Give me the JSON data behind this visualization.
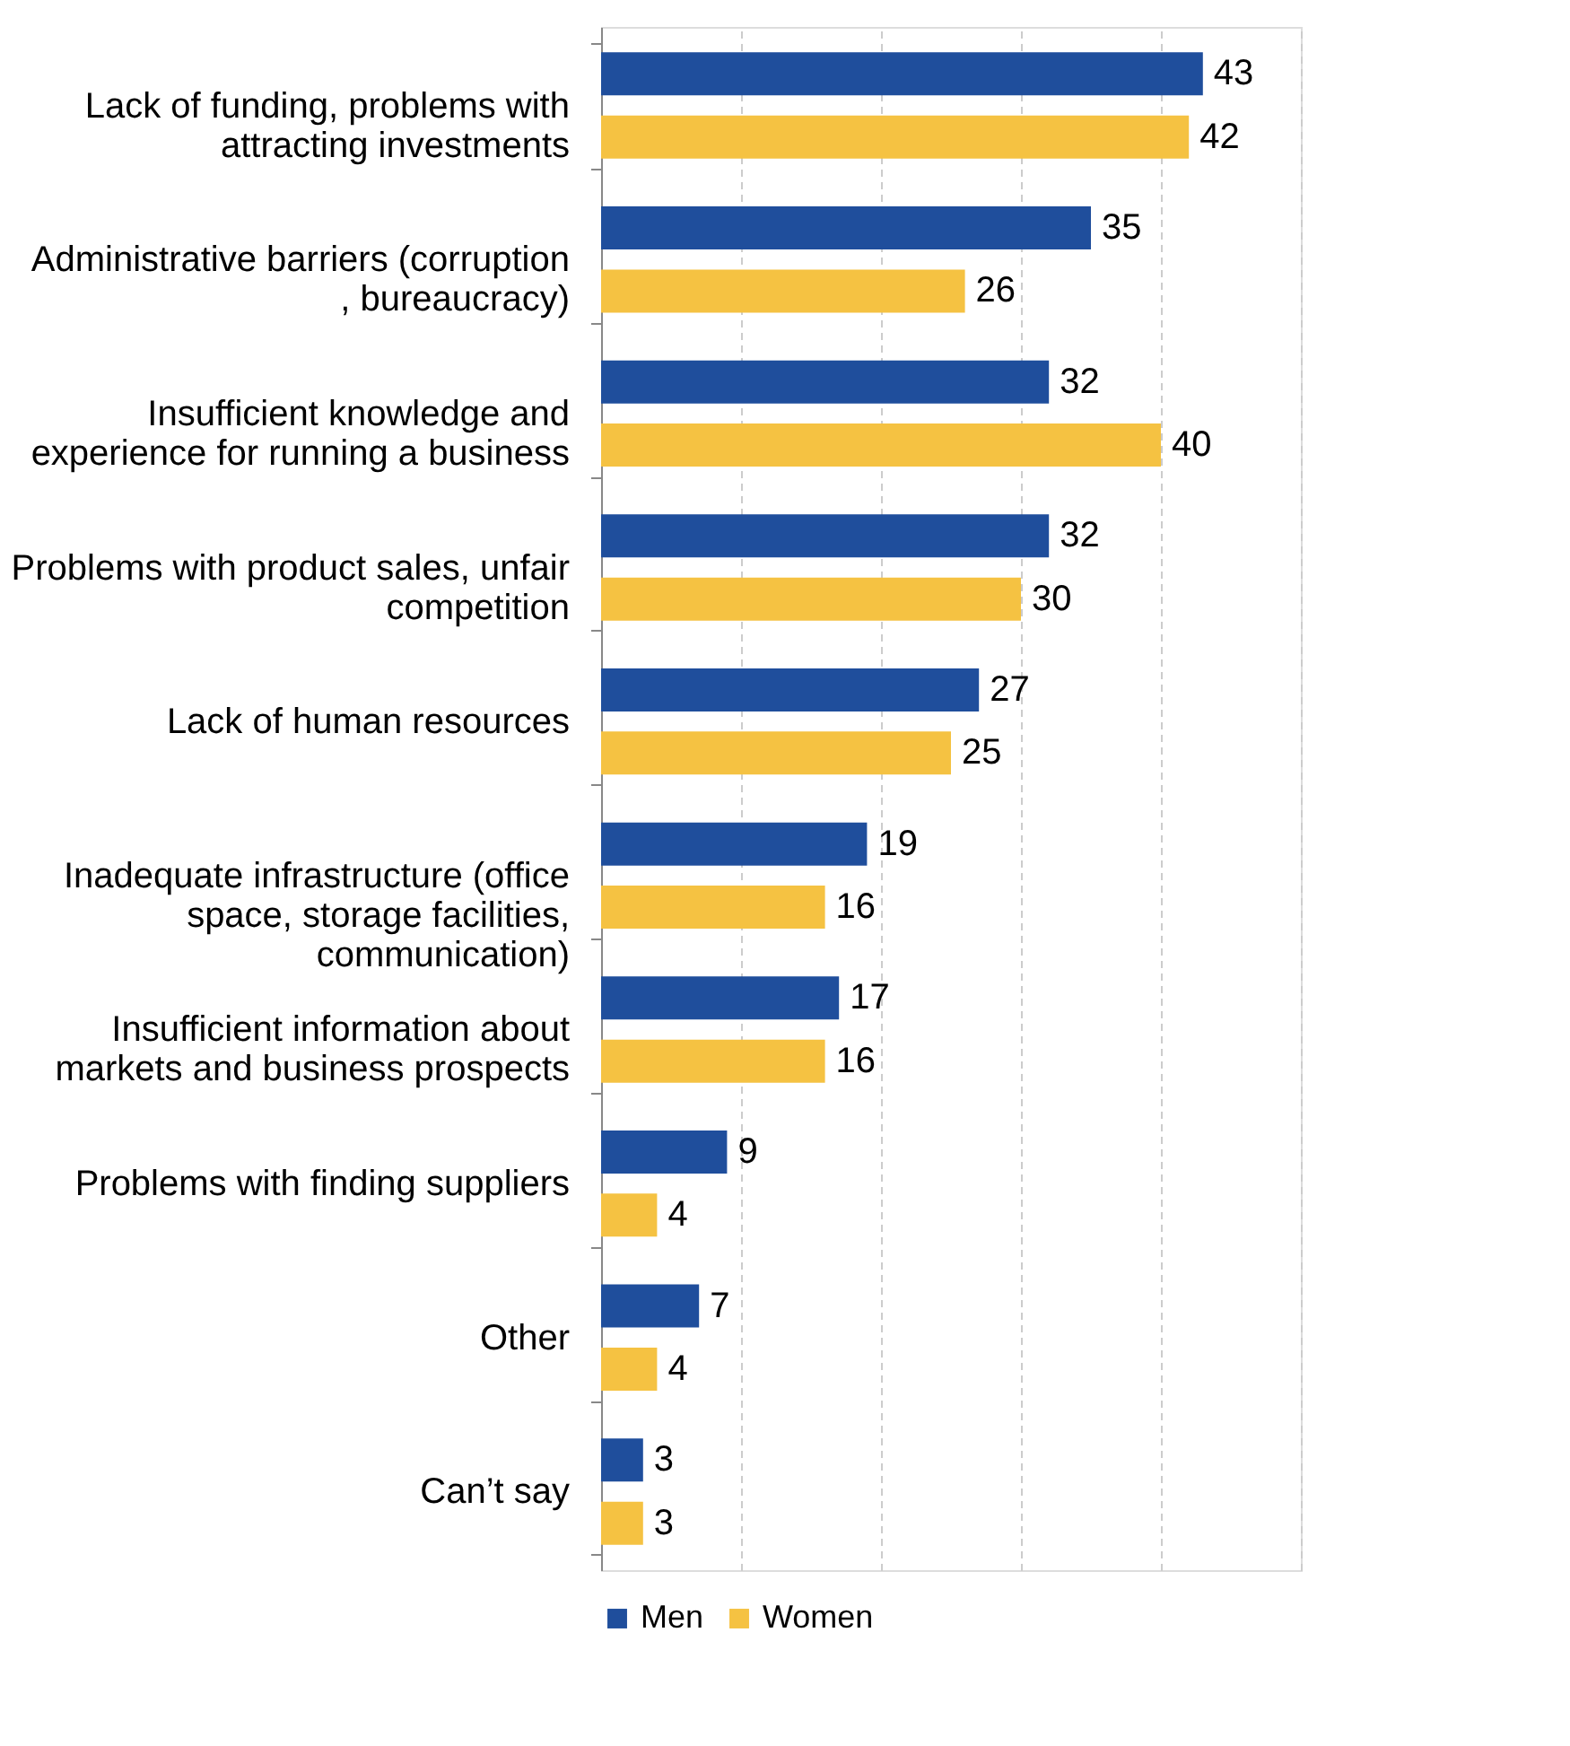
{
  "chart_data": {
    "type": "bar",
    "orientation": "horizontal",
    "categories": [
      "Lack of funding, problems with attracting investments",
      "Administrative barriers (corruption , bureaucracy)",
      "Insufficient knowledge and experience for running a business",
      "Problems with product sales, unfair competition",
      "Lack of human resources",
      "Inadequate infrastructure (office space, storage facilities, communication)",
      "Insufficient information about markets and business prospects",
      "Problems with finding suppliers",
      "Other",
      "Can’t say"
    ],
    "series": [
      {
        "name": "Men",
        "color": "#1f4e9c",
        "values": [
          43,
          35,
          32,
          32,
          27,
          19,
          17,
          9,
          7,
          3
        ]
      },
      {
        "name": "Women",
        "color": "#f5c242",
        "values": [
          42,
          26,
          40,
          30,
          25,
          16,
          16,
          4,
          4,
          3
        ]
      }
    ],
    "xlim": [
      0,
      50
    ],
    "xticks": [
      {
        "value": 0,
        "label": null
      },
      {
        "value": 10,
        "label": null
      },
      {
        "value": 20,
        "label": null
      },
      {
        "value": 30,
        "label": null
      },
      {
        "value": 40,
        "label": null
      },
      {
        "value": 50,
        "label": null
      }
    ],
    "tick_labels": "y",
    "grid": "x",
    "legend": "bottom",
    "data_labels": true
  }
}
